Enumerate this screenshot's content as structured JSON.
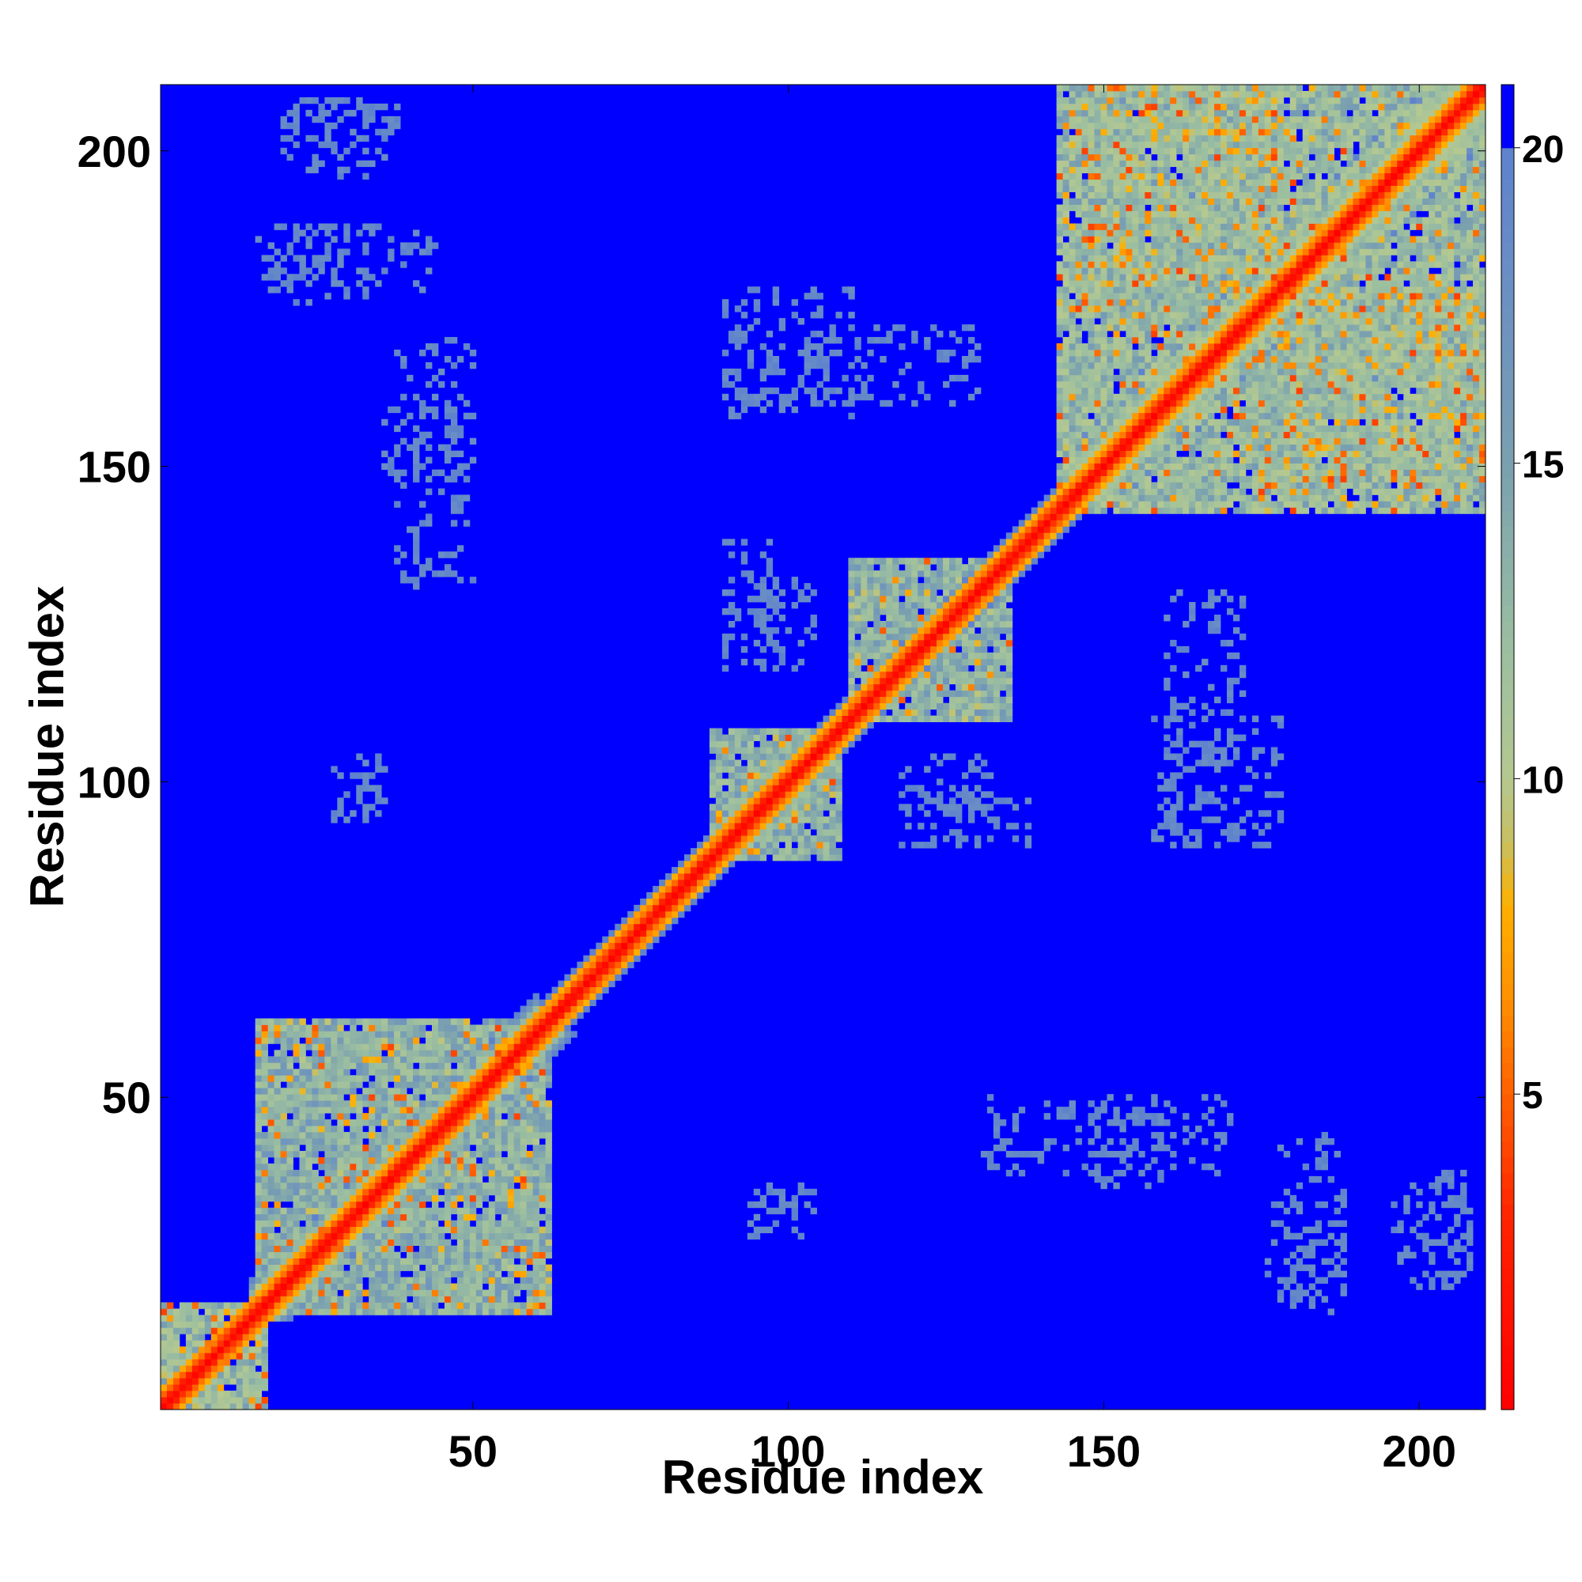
{
  "chart_data": {
    "type": "heatmap",
    "title": "",
    "xlabel": "Residue index",
    "ylabel": "Residue index",
    "xlim": [
      1,
      210
    ],
    "ylim": [
      1,
      210
    ],
    "x_ticks": [
      50,
      100,
      150,
      200
    ],
    "y_ticks": [
      50,
      100,
      150,
      200
    ],
    "colorbar": {
      "ticks": [
        5,
        10,
        15,
        20
      ],
      "range": [
        0,
        21
      ],
      "cap": 20,
      "colormap": [
        [
          0,
          "#ff0000"
        ],
        [
          3,
          "#ff2200"
        ],
        [
          5,
          "#ff6000"
        ],
        [
          6.5,
          "#ff9000"
        ],
        [
          8,
          "#ffb000"
        ],
        [
          9,
          "#c8c060"
        ],
        [
          10,
          "#b5c890"
        ],
        [
          12,
          "#9cbfa0"
        ],
        [
          15,
          "#7aa0b0"
        ],
        [
          18,
          "#6a8ec4"
        ],
        [
          20,
          "#5e82cc"
        ],
        [
          21,
          "#0000ff"
        ]
      ]
    },
    "background_value": 21,
    "diagonal_band": [
      {
        "from": 1,
        "to": 15,
        "width": 3
      },
      {
        "from": 15,
        "to": 60,
        "width": 6
      },
      {
        "from": 60,
        "to": 145,
        "width": 4
      },
      {
        "from": 145,
        "to": 210,
        "width": 9
      }
    ],
    "domains": [
      {
        "x": [
          1,
          17
        ],
        "y": [
          1,
          17
        ],
        "value": 13
      },
      {
        "x": [
          16,
          62
        ],
        "y": [
          16,
          62
        ],
        "value": 14
      },
      {
        "x": [
          88,
          108
        ],
        "y": [
          88,
          108
        ],
        "value": 14
      },
      {
        "x": [
          110,
          135
        ],
        "y": [
          110,
          135
        ],
        "value": 14
      },
      {
        "x": [
          143,
          210
        ],
        "y": [
          143,
          210
        ],
        "value": 13
      },
      {
        "x": [
          148,
          178
        ],
        "y": [
          175,
          210
        ],
        "value": 15
      },
      {
        "x": [
          175,
          210
        ],
        "y": [
          148,
          178
        ],
        "value": 15
      }
    ],
    "sparse_contacts": [
      {
        "x": [
          24,
          38
        ],
        "y": [
          196,
          208
        ],
        "value": 19
      },
      {
        "x": [
          16,
          44
        ],
        "y": [
          178,
          188
        ],
        "value": 19
      },
      {
        "x": [
          36,
          48
        ],
        "y": [
          148,
          160
        ],
        "value": 19
      },
      {
        "x": [
          92,
          130
        ],
        "y": [
          160,
          172
        ],
        "value": 19
      },
      {
        "x": [
          94,
          104
        ],
        "y": [
          118,
          132
        ],
        "value": 19
      },
      {
        "x": [
          28,
          35
        ],
        "y": [
          94,
          102
        ],
        "value": 19
      },
      {
        "x": [
          118,
          138
        ],
        "y": [
          90,
          98
        ],
        "value": 19
      },
      {
        "x": [
          158,
          178
        ],
        "y": [
          90,
          110
        ],
        "value": 19
      },
      {
        "x": [
          130,
          170
        ],
        "y": [
          38,
          50
        ],
        "value": 19
      },
      {
        "x": [
          176,
          188
        ],
        "y": [
          18,
          34
        ],
        "value": 19
      },
      {
        "x": [
          198,
          208
        ],
        "y": [
          20,
          36
        ],
        "value": 19
      },
      {
        "x": [
          94,
          104
        ],
        "y": [
          30,
          36
        ],
        "value": 19
      }
    ]
  }
}
